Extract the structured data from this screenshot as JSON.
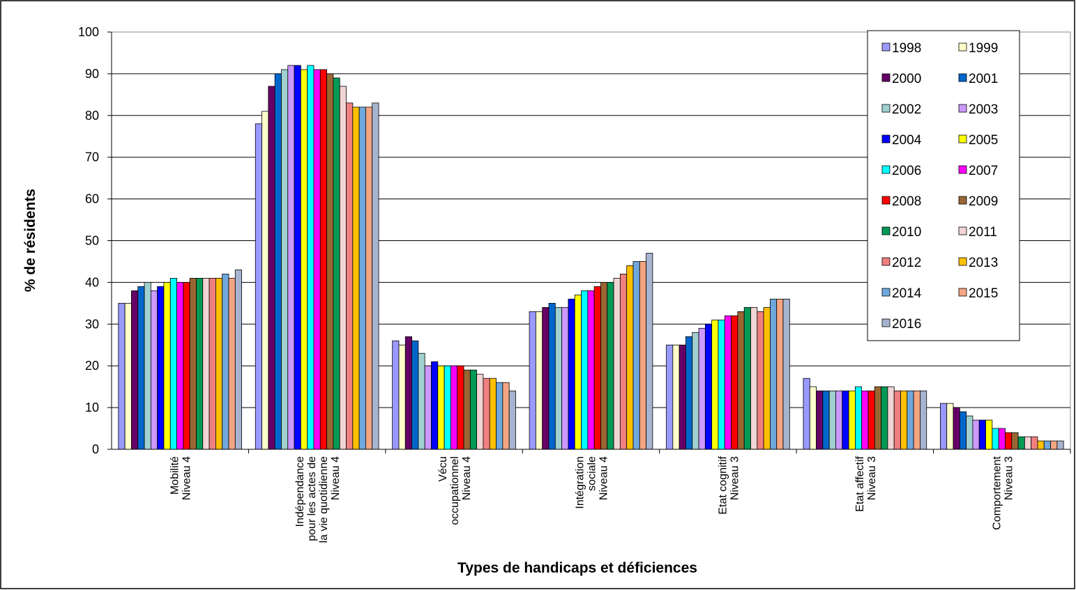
{
  "chart_data": {
    "type": "bar",
    "x_label": "Types de handicaps et déficiences",
    "y_label": "% de résidents",
    "categories": [
      "Mobilité\nNiveau 4",
      "Indépendance\npour les actes de\nla vie quotidienne\nNiveau 4",
      "Vécu\noccupationnel\nNiveau 4",
      "Intégration\nsociale\nNiveau 4",
      "Etat cognitif\nNiveau 3",
      "Etat affectif\nNiveau 3",
      "Comportement\nNiveau 3"
    ],
    "ylim": [
      0,
      100
    ],
    "yticks": [
      0,
      10,
      20,
      30,
      40,
      50,
      60,
      70,
      80,
      90,
      100
    ],
    "grid": true,
    "legend": "upper right",
    "series": [
      {
        "name": "1998",
        "color": "#9999ff",
        "values": [
          35,
          78,
          26,
          33,
          25,
          17,
          11
        ]
      },
      {
        "name": "1999",
        "color": "#ffffcc",
        "values": [
          35,
          81,
          25,
          33,
          25,
          15,
          11
        ]
      },
      {
        "name": "2000",
        "color": "#660066",
        "values": [
          38,
          87,
          27,
          34,
          25,
          14,
          10
        ]
      },
      {
        "name": "2001",
        "color": "#0066cc",
        "values": [
          39,
          90,
          26,
          35,
          27,
          14,
          9
        ]
      },
      {
        "name": "2002",
        "color": "#a0d0d0",
        "values": [
          40,
          91,
          23,
          34,
          28,
          14,
          8
        ]
      },
      {
        "name": "2003",
        "color": "#cc99ff",
        "values": [
          38,
          92,
          20,
          34,
          29,
          14,
          7
        ]
      },
      {
        "name": "2004",
        "color": "#0000ff",
        "values": [
          39,
          92,
          21,
          36,
          30,
          14,
          7
        ]
      },
      {
        "name": "2005",
        "color": "#ffff00",
        "values": [
          40,
          91,
          20,
          37,
          31,
          14,
          7
        ]
      },
      {
        "name": "2006",
        "color": "#00ffff",
        "values": [
          41,
          92,
          20,
          38,
          31,
          15,
          5
        ]
      },
      {
        "name": "2007",
        "color": "#ff00ff",
        "values": [
          40,
          91,
          20,
          38,
          32,
          14,
          5
        ]
      },
      {
        "name": "2008",
        "color": "#ff0000",
        "values": [
          40,
          91,
          20,
          39,
          32,
          14,
          4
        ]
      },
      {
        "name": "2009",
        "color": "#996633",
        "values": [
          41,
          90,
          19,
          40,
          33,
          15,
          4
        ]
      },
      {
        "name": "2010",
        "color": "#009955",
        "values": [
          41,
          89,
          19,
          40,
          34,
          15,
          3
        ]
      },
      {
        "name": "2011",
        "color": "#f2d4d4",
        "values": [
          41,
          87,
          18,
          41,
          34,
          15,
          3
        ]
      },
      {
        "name": "2012",
        "color": "#f08080",
        "values": [
          41,
          83,
          17,
          42,
          33,
          14,
          3
        ]
      },
      {
        "name": "2013",
        "color": "#ffc000",
        "values": [
          41,
          82,
          17,
          44,
          34,
          14,
          2
        ]
      },
      {
        "name": "2014",
        "color": "#6fa8dc",
        "values": [
          42,
          82,
          16,
          45,
          36,
          14,
          2
        ]
      },
      {
        "name": "2015",
        "color": "#f4a582",
        "values": [
          41,
          82,
          16,
          45,
          36,
          14,
          2
        ]
      },
      {
        "name": "2016",
        "color": "#a6b4d0",
        "values": [
          43,
          83,
          14,
          47,
          36,
          14,
          2
        ]
      }
    ]
  }
}
